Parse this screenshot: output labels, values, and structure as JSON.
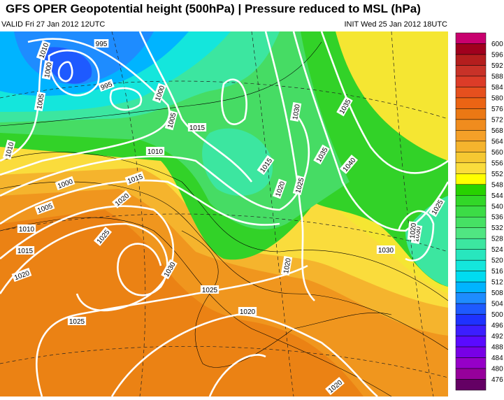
{
  "header": {
    "title": "GFS OPER Geopotential height (500hPa) | Pressure reduced to MSL (hPa)",
    "valid": "VALID Fri 27 Jan 2012 12UTC",
    "init": "INIT Wed 25 Jan 2012 18UTC"
  },
  "colorbar": {
    "ticks": [
      600,
      596,
      592,
      588,
      584,
      580,
      576,
      572,
      568,
      564,
      560,
      556,
      552,
      548,
      544,
      540,
      536,
      532,
      528,
      524,
      520,
      516,
      512,
      508,
      504,
      500,
      496,
      492,
      488,
      484,
      480,
      476
    ],
    "colors": [
      "#c8006e",
      "#a0001e",
      "#b41e1e",
      "#c83228",
      "#dc3c28",
      "#e6501e",
      "#eb6414",
      "#eb7814",
      "#f08c1e",
      "#f5a028",
      "#f5b42d",
      "#f5c832",
      "#fadc3c",
      "#ffff00",
      "#28d200",
      "#32d728",
      "#3cdc46",
      "#46e164",
      "#50e682",
      "#3ce6a0",
      "#28e6be",
      "#14e6dc",
      "#00dcf0",
      "#00b4ff",
      "#1e8cff",
      "#1e5aff",
      "#1e32ff",
      "#3c1eff",
      "#5a0aff",
      "#7800e6",
      "#9600c8",
      "#96009b",
      "#640064"
    ]
  },
  "isobar_labels": [
    "1010",
    "995",
    "1000",
    "1005",
    "995",
    "1000",
    "1005",
    "1015",
    "1010",
    "1010",
    "1000",
    "1005",
    "1015",
    "1020",
    "1010",
    "1015",
    "1025",
    "1030",
    "1020",
    "1025",
    "1020",
    "1025",
    "1020",
    "1015",
    "1020",
    "1025",
    "1030",
    "1035",
    "1040",
    "1035",
    "1030",
    "1030",
    "1025",
    "1020",
    "1020"
  ]
}
